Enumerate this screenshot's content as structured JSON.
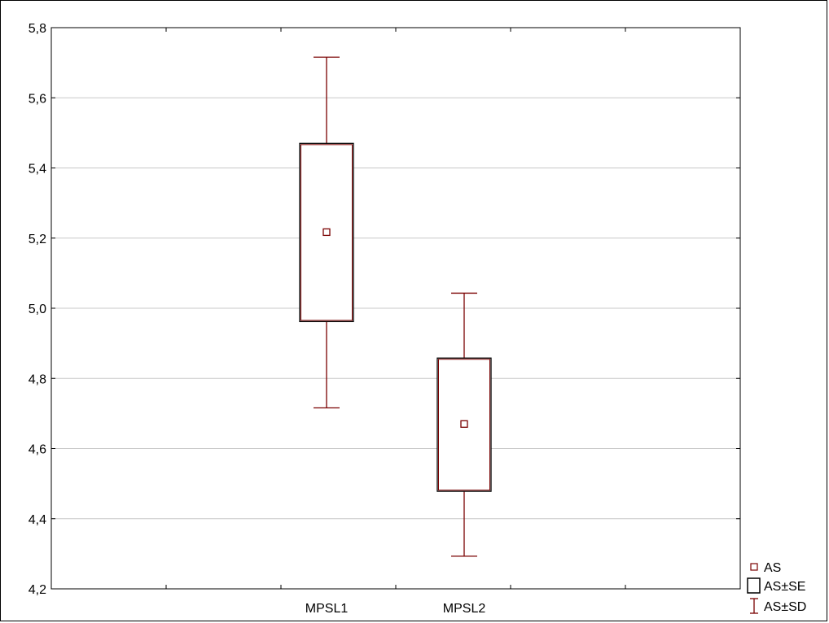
{
  "chart_data": {
    "type": "box",
    "title": "",
    "xlabel": "",
    "ylabel": "",
    "categories": [
      "MPSL1",
      "MPSL2"
    ],
    "series": [
      {
        "name": "MPSL1",
        "mean": 5.217,
        "se_low": 4.962,
        "se_high": 5.47,
        "sd_low": 4.716,
        "sd_high": 5.716
      },
      {
        "name": "MPSL2",
        "mean": 4.67,
        "se_low": 4.478,
        "se_high": 4.858,
        "sd_low": 4.293,
        "sd_high": 5.043
      }
    ],
    "ylim": [
      4.2,
      5.8
    ],
    "yticks": [
      "4,2",
      "4,4",
      "4,6",
      "4,8",
      "5,0",
      "5,2",
      "5,4",
      "5,6",
      "5,8"
    ],
    "ytick_values": [
      4.2,
      4.4,
      4.6,
      4.8,
      5.0,
      5.2,
      5.4,
      5.6,
      5.8
    ],
    "x_minor_tick_count": 6,
    "grid": "horizontal",
    "legend": {
      "position": "bottom-right",
      "entries": [
        {
          "label": "AS",
          "marker": "small-square"
        },
        {
          "label": "AS±SE",
          "marker": "box"
        },
        {
          "label": "AS±SD",
          "marker": "whisker"
        }
      ]
    },
    "color": "#7a0000"
  }
}
